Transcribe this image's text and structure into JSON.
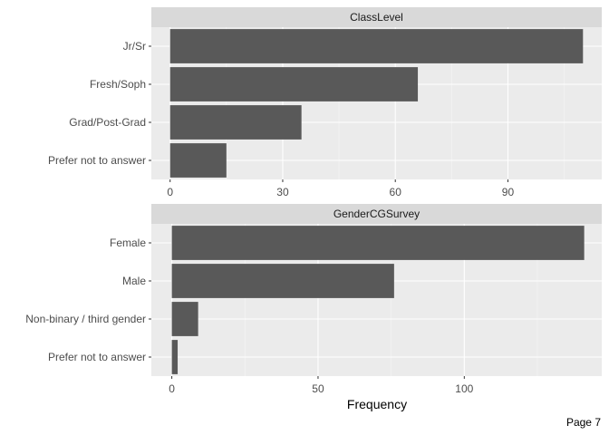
{
  "chart_data": [
    {
      "type": "bar",
      "orientation": "horizontal",
      "title": "ClassLevel",
      "categories": [
        "Jr/Sr",
        "Fresh/Soph",
        "Grad/Post-Grad",
        "Prefer not to answer"
      ],
      "values": [
        110,
        66,
        35,
        15
      ],
      "xlim": [
        -5,
        115
      ],
      "xticks": [
        0,
        30,
        60,
        90
      ],
      "xlabel": "",
      "grid": true
    },
    {
      "type": "bar",
      "orientation": "horizontal",
      "title": "GenderCGSurvey",
      "categories": [
        "Female",
        "Male",
        "Non-binary / third gender",
        "Prefer not to answer"
      ],
      "values": [
        141,
        76,
        9,
        2
      ],
      "xlim": [
        -7,
        147
      ],
      "xticks": [
        0,
        50,
        100
      ],
      "xlabel": "Frequency",
      "grid": true
    }
  ],
  "page_label": "Page 7",
  "colors": {
    "bar": "#595959",
    "panel_bg": "#ebebeb",
    "strip_bg": "#d9d9d9",
    "grid_major": "#ffffff",
    "grid_minor": "#f5f5f5"
  }
}
